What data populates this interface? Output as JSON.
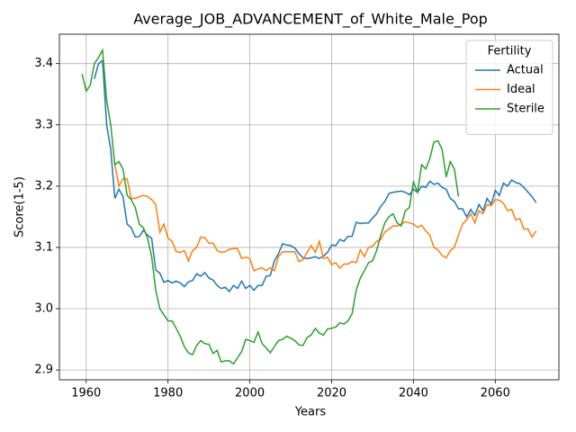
{
  "chart_data": {
    "type": "line",
    "title": "Average_JOB_ADVANCEMENT_of_White_Male_Pop",
    "x_label": "Years",
    "y_label": "Score(1-5)",
    "legend_title": "Fertility",
    "legend_position": "upper right",
    "grid": true,
    "xlim": [
      1953.45,
      2075.55
    ],
    "ylim": [
      2.884,
      3.448
    ],
    "xticks": [
      1960,
      1980,
      2000,
      2020,
      2040,
      2060
    ],
    "yticks": [
      2.9,
      {
        "value": 3,
        "label": "3.0"
      },
      3.1,
      3.2,
      3.3,
      3.4
    ],
    "x": [
      1959,
      1960,
      1961,
      1962,
      1963,
      1964,
      1965,
      1966,
      1967,
      1968,
      1969,
      1970,
      1971,
      1972,
      1973,
      1974,
      1975,
      1976,
      1977,
      1978,
      1979,
      1980,
      1981,
      1982,
      1983,
      1984,
      1985,
      1986,
      1987,
      1988,
      1989,
      1990,
      1991,
      1992,
      1993,
      1994,
      1995,
      1996,
      1997,
      1998,
      1999,
      2000,
      2001,
      2002,
      2003,
      2004,
      2005,
      2006,
      2007,
      2008,
      2009,
      2010,
      2011,
      2012,
      2013,
      2014,
      2015,
      2016,
      2017,
      2018,
      2019,
      2020,
      2021,
      2022,
      2023,
      2024,
      2025,
      2026,
      2027,
      2028,
      2029,
      2030,
      2031,
      2032,
      2033,
      2034,
      2035,
      2036,
      2037,
      2038,
      2039,
      2040,
      2041,
      2042,
      2043,
      2044,
      2045,
      2046,
      2047,
      2048,
      2049,
      2050,
      2051,
      2052,
      2053,
      2054,
      2055,
      2056,
      2057,
      2058,
      2059,
      2060,
      2061,
      2062,
      2063,
      2064,
      2065,
      2066,
      2067,
      2068,
      2069,
      2070
    ],
    "series": [
      {
        "name": "Actual",
        "color": "#1f77b4",
        "values": [
          null,
          null,
          null,
          3.375,
          3.4,
          3.405,
          3.3,
          3.26,
          3.18,
          3.195,
          3.183,
          3.138,
          3.132,
          3.117,
          3.118,
          3.128,
          3.12,
          3.115,
          3.063,
          3.058,
          3.043,
          3.046,
          3.042,
          3.045,
          3.042,
          3.036,
          3.044,
          3.046,
          3.057,
          3.053,
          3.059,
          3.05,
          3.047,
          3.038,
          3.033,
          3.035,
          3.028,
          3.038,
          3.033,
          3.045,
          3.033,
          3.038,
          3.03,
          3.038,
          3.038,
          3.053,
          3.054,
          3.078,
          3.09,
          3.106,
          3.104,
          3.103,
          3.099,
          3.09,
          3.083,
          3.082,
          3.083,
          3.085,
          3.082,
          3.086,
          3.092,
          3.104,
          3.103,
          3.113,
          3.11,
          3.118,
          3.118,
          3.141,
          3.139,
          3.14,
          3.14,
          3.148,
          3.155,
          3.167,
          3.175,
          3.188,
          3.19,
          3.191,
          3.192,
          3.19,
          3.186,
          3.195,
          3.19,
          3.2,
          3.198,
          3.208,
          3.203,
          3.205,
          3.198,
          3.195,
          3.18,
          3.175,
          3.163,
          3.163,
          3.15,
          3.162,
          3.152,
          3.17,
          3.16,
          3.18,
          3.17,
          3.193,
          3.185,
          3.205,
          3.2,
          3.21,
          3.206,
          3.204,
          3.198,
          3.19,
          3.183,
          3.173
        ]
      },
      {
        "name": "Ideal",
        "color": "#ff7f0e",
        "values": [
          null,
          null,
          null,
          null,
          null,
          null,
          null,
          null,
          3.235,
          3.2,
          3.212,
          3.212,
          3.18,
          3.18,
          3.183,
          3.185,
          3.183,
          3.178,
          3.17,
          3.125,
          3.138,
          3.115,
          3.11,
          3.093,
          3.092,
          3.095,
          3.078,
          3.095,
          3.1,
          3.117,
          3.116,
          3.107,
          3.107,
          3.095,
          3.092,
          3.093,
          3.097,
          3.098,
          3.098,
          3.082,
          3.084,
          3.082,
          3.062,
          3.065,
          3.067,
          3.062,
          3.067,
          3.062,
          3.085,
          3.093,
          3.093,
          3.093,
          3.093,
          3.077,
          3.08,
          3.092,
          3.103,
          3.092,
          3.11,
          3.082,
          3.084,
          3.072,
          3.075,
          3.066,
          3.073,
          3.073,
          3.077,
          3.075,
          3.096,
          3.085,
          3.1,
          3.102,
          3.11,
          3.113,
          3.125,
          3.13,
          3.135,
          3.135,
          3.138,
          3.142,
          3.14,
          3.138,
          3.133,
          3.136,
          3.127,
          3.12,
          3.1,
          3.096,
          3.087,
          3.083,
          3.095,
          3.1,
          3.12,
          3.138,
          3.145,
          3.155,
          3.14,
          3.16,
          3.155,
          3.17,
          3.168,
          3.178,
          3.177,
          3.172,
          3.16,
          3.162,
          3.145,
          3.147,
          3.13,
          3.13,
          3.117,
          3.127
        ]
      },
      {
        "name": "Sterile",
        "color": "#2ca02c",
        "values": [
          3.383,
          3.355,
          3.365,
          3.4,
          3.41,
          3.422,
          3.34,
          3.3,
          3.235,
          3.24,
          3.228,
          3.185,
          3.178,
          3.165,
          3.138,
          3.132,
          3.115,
          3.085,
          3.03,
          3.0,
          2.99,
          2.98,
          2.98,
          2.968,
          2.955,
          2.938,
          2.928,
          2.925,
          2.94,
          2.948,
          2.943,
          2.942,
          2.927,
          2.932,
          2.913,
          2.915,
          2.915,
          2.91,
          2.92,
          2.93,
          2.95,
          2.948,
          2.945,
          2.962,
          2.943,
          2.936,
          2.928,
          2.938,
          2.948,
          2.95,
          2.955,
          2.952,
          2.948,
          2.941,
          2.94,
          2.953,
          2.957,
          2.968,
          2.96,
          2.957,
          2.967,
          2.968,
          2.97,
          2.977,
          2.975,
          2.98,
          2.992,
          3.03,
          3.05,
          3.062,
          3.075,
          3.078,
          3.095,
          3.12,
          3.14,
          3.15,
          3.155,
          3.14,
          3.135,
          3.16,
          3.165,
          3.207,
          3.19,
          3.235,
          3.228,
          3.245,
          3.272,
          3.274,
          3.26,
          3.215,
          3.24,
          3.228,
          3.183,
          null,
          null,
          null,
          null,
          null,
          null,
          null,
          null,
          null,
          null,
          null,
          null,
          null,
          null,
          null,
          null,
          null,
          null,
          null
        ]
      }
    ]
  }
}
